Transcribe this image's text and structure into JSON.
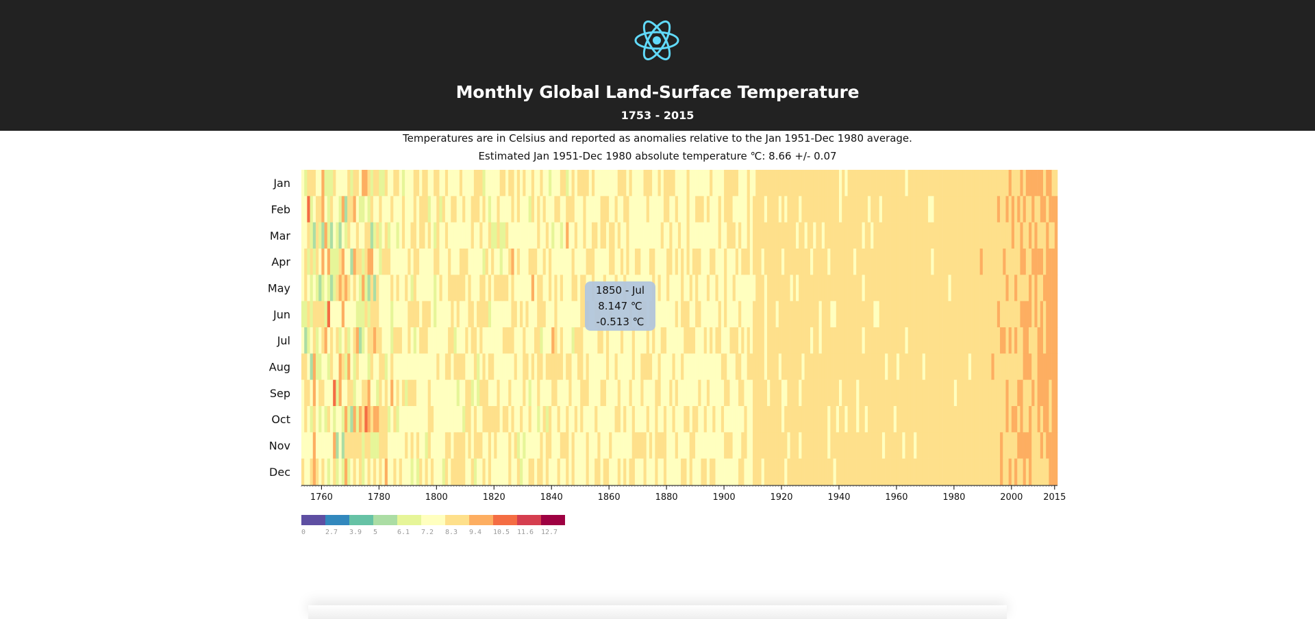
{
  "header": {
    "logo_icon": "react-atom-icon",
    "title": "Monthly Global Land-Surface Temperature",
    "subtitle": "1753 - 2015"
  },
  "description": {
    "line1": "Temperatures are in Celsius and reported as anomalies relative to the Jan 1951-Dec 1980 average.",
    "line2": "Estimated Jan 1951-Dec 1980 absolute temperature ℃: 8.66 +/- 0.07"
  },
  "tooltip": {
    "line1": "1850 - Jul",
    "line2": "8.147 ℃",
    "line3": "-0.513 ℃"
  },
  "chart_data": {
    "type": "heatmap",
    "x_range": [
      1753,
      2015
    ],
    "x_ticks": [
      "1760",
      "1780",
      "1800",
      "1820",
      "1840",
      "1860",
      "1880",
      "1900",
      "1920",
      "1940",
      "1960",
      "1980",
      "2000",
      "2015"
    ],
    "y_categories": [
      "Jan",
      "Feb",
      "Mar",
      "Apr",
      "May",
      "Jun",
      "Jul",
      "Aug",
      "Sep",
      "Oct",
      "Nov",
      "Dec"
    ],
    "base_temperature": 8.66,
    "legend": {
      "thresholds": [
        "0",
        "2.7",
        "3.9",
        "5",
        "6.1",
        "7.2",
        "8.3",
        "9.4",
        "10.5",
        "11.6",
        "12.7"
      ],
      "colors": [
        "#5e4fa2",
        "#3288bd",
        "#66c2a5",
        "#abdda4",
        "#e6f598",
        "#ffffbf",
        "#fee08b",
        "#fdae61",
        "#f46d43",
        "#d53e4f",
        "#9e0142"
      ],
      "placement": "bottom-left"
    },
    "grid": false
  }
}
